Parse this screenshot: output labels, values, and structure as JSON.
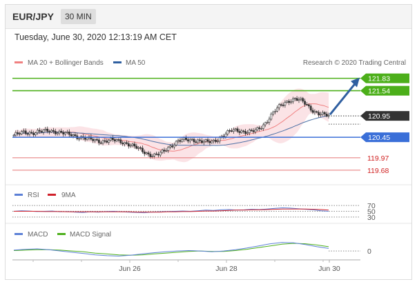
{
  "header": {
    "pair": "EUR/JPY",
    "timeframe": "30 MIN",
    "date": "Tuesday, June 30, 2020 12:13:19 AM CET"
  },
  "legend": {
    "ma20": "MA 20 + Bollinger Bands",
    "ma50": "MA 50",
    "copyright": "Research © 2020 Trading Central",
    "rsi": "RSI",
    "rsi_ma": "9MA",
    "macd": "MACD",
    "macd_signal": "MACD Signal"
  },
  "colors": {
    "up_candle": "#ffffff",
    "down_candle": "#333333",
    "ma20": "#f08080",
    "bollinger": "#fadadd",
    "ma50": "#4a6fa5",
    "resistance": "#4caf1a",
    "pivot": "#3a6fd8",
    "support": "#e57373",
    "arrow": "#2f5fa0",
    "rsi": "#5b7fd6",
    "rsi_ma": "#d0202a",
    "macd": "#5b7fd6",
    "macd_signal": "#4caf1a"
  },
  "chart_data": {
    "type": "candlestick",
    "xlabels": [
      "Jun 26",
      "Jun 28",
      "Jun 30"
    ],
    "price_levels": [
      {
        "label": "121.83",
        "value": 121.83,
        "kind": "resistance"
      },
      {
        "label": "121.54",
        "value": 121.54,
        "kind": "resistance"
      },
      {
        "label": "120.95",
        "value": 120.95,
        "kind": "last"
      },
      {
        "label": "120.45",
        "value": 120.45,
        "kind": "pivot"
      },
      {
        "label": "119.97",
        "value": 119.97,
        "kind": "support"
      },
      {
        "label": "119.68",
        "value": 119.68,
        "kind": "support"
      }
    ],
    "close": [
      120.5,
      120.53,
      120.56,
      120.56,
      120.56,
      120.58,
      120.58,
      120.6,
      120.6,
      120.58,
      120.55,
      120.52,
      120.5,
      120.47,
      120.45,
      120.42,
      120.39,
      120.37,
      120.36,
      120.37,
      120.38,
      120.37,
      120.35,
      120.32,
      120.28,
      120.22,
      120.16,
      120.1,
      120.05,
      120.03,
      120.05,
      120.12,
      120.22,
      120.3,
      120.37,
      120.38,
      120.38,
      120.39,
      120.38,
      120.35,
      120.33,
      120.34,
      120.4,
      120.48,
      120.55,
      120.6,
      120.61,
      120.6,
      120.58,
      120.58,
      120.6,
      120.68,
      120.8,
      120.95,
      121.08,
      121.18,
      121.26,
      121.32,
      121.35,
      121.32,
      121.25,
      121.15,
      121.06,
      121.0,
      120.97,
      120.95
    ],
    "rsi": {
      "levels": [
        70,
        50,
        30
      ],
      "values": [
        50,
        52,
        51,
        49,
        50,
        51,
        48,
        49,
        47,
        46,
        48,
        47,
        49,
        50,
        48,
        47,
        46,
        45,
        47,
        48,
        49,
        50,
        51,
        50,
        52,
        54,
        53,
        55,
        56,
        54,
        55,
        57,
        56,
        58,
        60,
        62,
        61,
        59,
        57,
        55,
        52,
        50
      ],
      "ma": [
        50,
        50,
        50,
        50,
        49,
        49,
        49,
        48,
        48,
        48,
        48,
        48,
        48,
        48,
        48,
        48,
        47,
        47,
        47,
        47,
        48,
        48,
        49,
        49,
        50,
        51,
        51,
        52,
        53,
        54,
        54,
        55,
        55,
        56,
        57,
        58,
        58,
        58,
        58,
        57,
        56,
        54
      ]
    },
    "macd": {
      "zero_label": "0",
      "macd": [
        0.02,
        0.04,
        0.05,
        0.03,
        0.0,
        -0.03,
        -0.06,
        -0.09,
        -0.11,
        -0.12,
        -0.1,
        -0.07,
        -0.04,
        -0.02,
        0.0,
        0.01,
        0.0,
        -0.02,
        0.0,
        0.03,
        0.07,
        0.12,
        0.17,
        0.2,
        0.19,
        0.15,
        0.1,
        0.06
      ],
      "signal": [
        0.01,
        0.02,
        0.03,
        0.03,
        0.02,
        0.0,
        -0.02,
        -0.05,
        -0.07,
        -0.09,
        -0.1,
        -0.09,
        -0.07,
        -0.05,
        -0.03,
        -0.01,
        0.0,
        -0.01,
        -0.01,
        0.01,
        0.04,
        0.08,
        0.12,
        0.16,
        0.18,
        0.17,
        0.14,
        0.1
      ]
    }
  }
}
